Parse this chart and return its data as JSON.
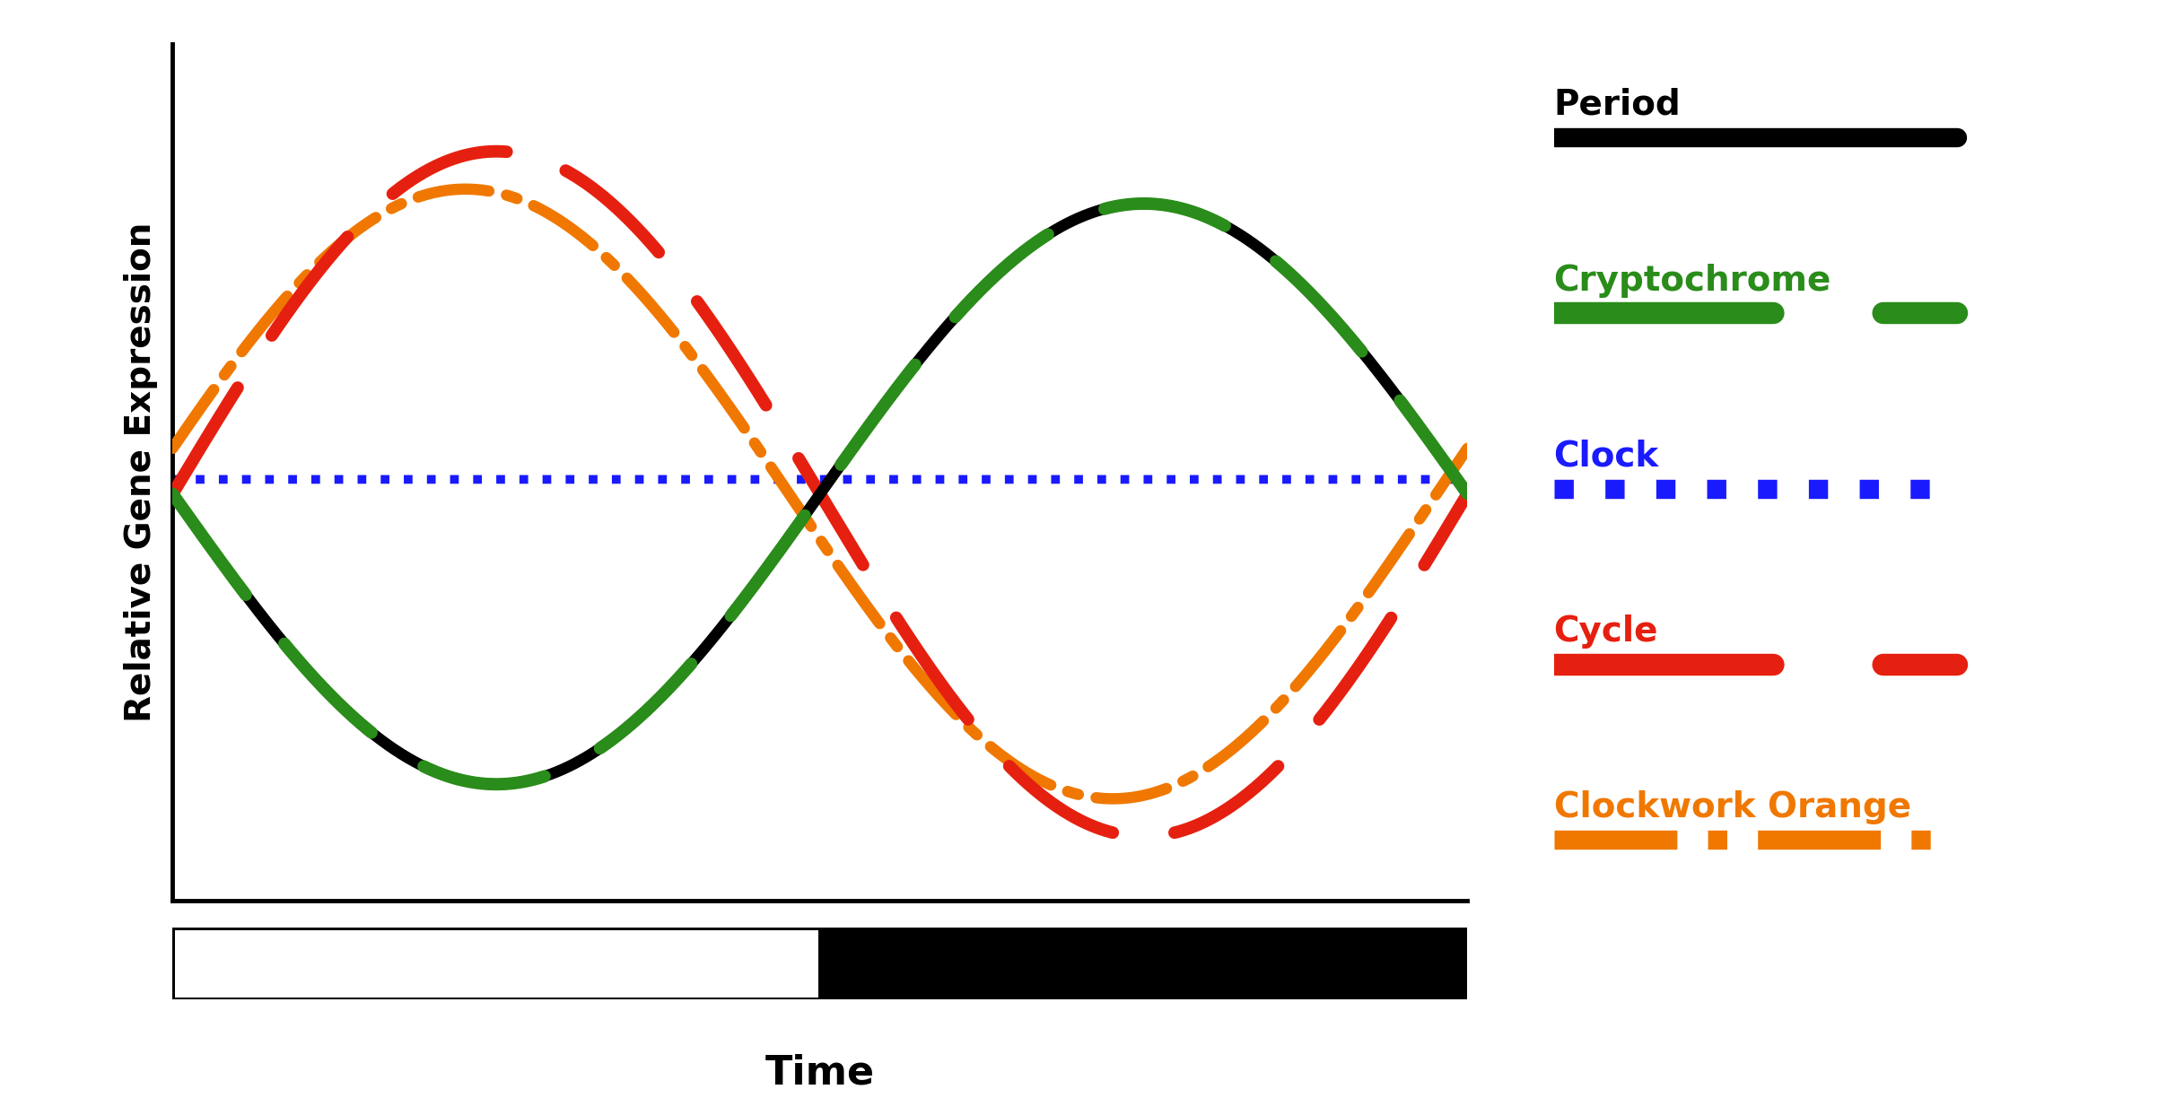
{
  "ylabel": "Relative Gene Expression",
  "xlabel": "Time",
  "background_color": "#ffffff",
  "period_color": "#000000",
  "cryptochrome_color": "#2a8c1a",
  "clock_color": "#1a1aff",
  "cycle_color": "#e62010",
  "clockwork_orange_color": "#f07800",
  "ylabel_fontsize": 28,
  "xlabel_fontsize": 32,
  "legend_label_fontsize": 28,
  "period_legend_fontsize": 32,
  "amplitude_period": 1.0,
  "amplitude_cycle": 1.18,
  "amplitude_cwo": 1.05,
  "x_start": 0.0,
  "x_end": 4.0,
  "period_phase": -1.5707963,
  "cry_phase": -1.5707963,
  "cycle_phase": 0.0,
  "cwo_phase": 0.15,
  "clock_level": 0.0,
  "ylim": [
    -1.4,
    1.55
  ],
  "xlim": [
    0.0,
    4.0
  ]
}
